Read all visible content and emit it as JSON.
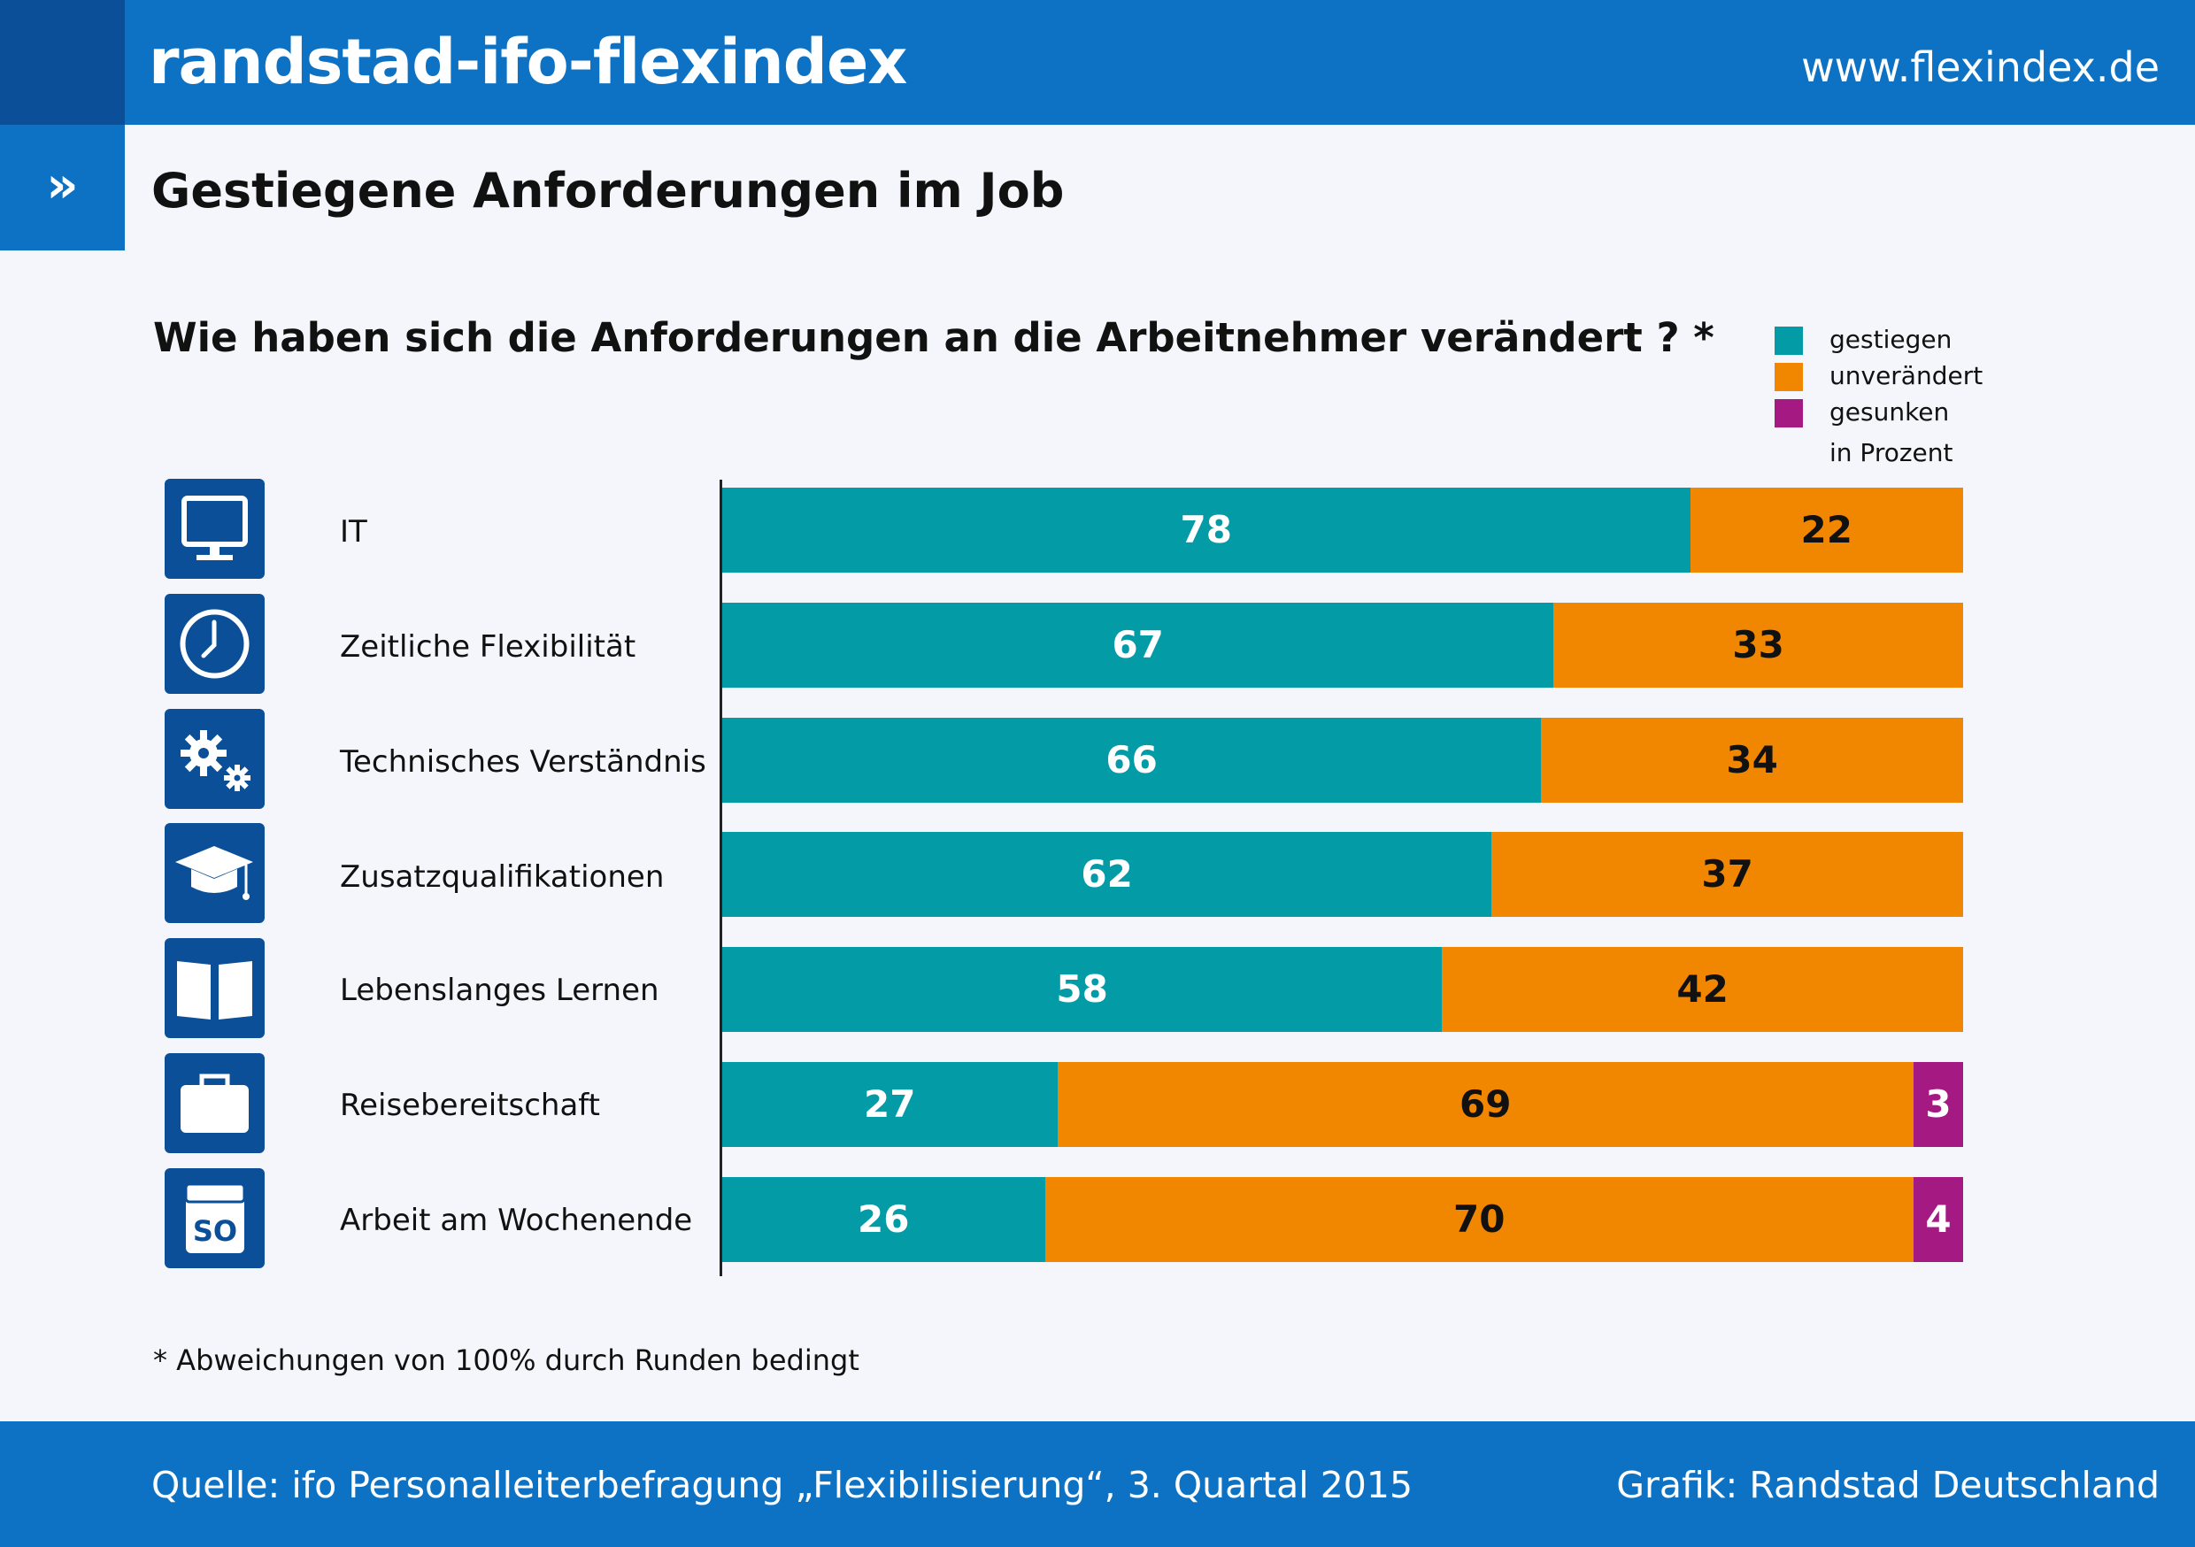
{
  "header": {
    "brand": "randstad-ifo-flexindex",
    "url": "www.flexindex.de",
    "marker": "»",
    "subtitle": "Gestiegene Anforderungen im Job"
  },
  "colors": {
    "header_blue": "#0d72c4",
    "dark_blue": "#0a4f98",
    "gestiegen": "#029ba6",
    "unveraendert": "#f18700",
    "gesunken": "#a51983"
  },
  "chart_data": {
    "type": "bar",
    "orientation": "horizontal",
    "stacked": true,
    "title": "Wie haben sich die Anforderungen an die Arbeitnehmer verändert ? *",
    "unit_label": "in Prozent",
    "xlim": [
      0,
      100
    ],
    "legend": [
      "gestiegen",
      "unverändert",
      "gesunken"
    ],
    "legend_position": "top-right",
    "categories": [
      "IT",
      "Zeitliche Flexibilität",
      "Technisches Verständnis",
      "Zusatzqualifikationen",
      "Lebenslanges Lernen",
      "Reisebereitschaft",
      "Arbeit am Wochenende"
    ],
    "icons": [
      "monitor-icon",
      "clock-icon",
      "gears-icon",
      "graduation-cap-icon",
      "book-icon",
      "briefcase-icon",
      "sunday-so-icon"
    ],
    "series": [
      {
        "name": "gestiegen",
        "values": [
          78,
          67,
          66,
          62,
          58,
          27,
          26
        ]
      },
      {
        "name": "unverändert",
        "values": [
          22,
          33,
          34,
          37,
          42,
          69,
          70
        ]
      },
      {
        "name": "gesunken",
        "values": [
          null,
          null,
          null,
          null,
          null,
          3,
          4
        ]
      }
    ]
  },
  "footnote": "* Abweichungen von 100% durch Runden bedingt",
  "footer": {
    "source": "Quelle: ifo Personalleiterbefragung „Flexibilisierung“, 3. Quartal 2015",
    "credit": "Grafik: Randstad Deutschland"
  }
}
